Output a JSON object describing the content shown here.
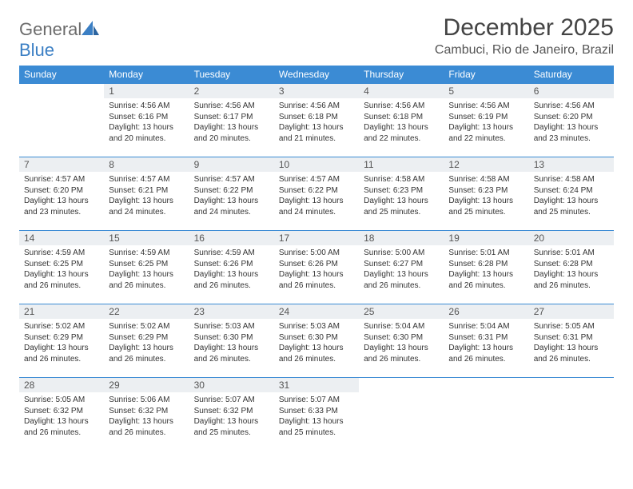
{
  "brand": {
    "part1": "General",
    "part2": "Blue"
  },
  "title": "December 2025",
  "location": "Cambuci, Rio de Janeiro, Brazil",
  "colors": {
    "header_bg": "#3b8bd4",
    "header_text": "#ffffff",
    "daynum_bg": "#eceff2",
    "border": "#3b8bd4",
    "logo_gray": "#6b6b6b",
    "logo_blue": "#3b7fc4"
  },
  "weekdays": [
    "Sunday",
    "Monday",
    "Tuesday",
    "Wednesday",
    "Thursday",
    "Friday",
    "Saturday"
  ],
  "startOffset": 1,
  "days": [
    {
      "n": 1,
      "sunrise": "4:56 AM",
      "sunset": "6:16 PM",
      "daylight": "13 hours and 20 minutes."
    },
    {
      "n": 2,
      "sunrise": "4:56 AM",
      "sunset": "6:17 PM",
      "daylight": "13 hours and 20 minutes."
    },
    {
      "n": 3,
      "sunrise": "4:56 AM",
      "sunset": "6:18 PM",
      "daylight": "13 hours and 21 minutes."
    },
    {
      "n": 4,
      "sunrise": "4:56 AM",
      "sunset": "6:18 PM",
      "daylight": "13 hours and 22 minutes."
    },
    {
      "n": 5,
      "sunrise": "4:56 AM",
      "sunset": "6:19 PM",
      "daylight": "13 hours and 22 minutes."
    },
    {
      "n": 6,
      "sunrise": "4:56 AM",
      "sunset": "6:20 PM",
      "daylight": "13 hours and 23 minutes."
    },
    {
      "n": 7,
      "sunrise": "4:57 AM",
      "sunset": "6:20 PM",
      "daylight": "13 hours and 23 minutes."
    },
    {
      "n": 8,
      "sunrise": "4:57 AM",
      "sunset": "6:21 PM",
      "daylight": "13 hours and 24 minutes."
    },
    {
      "n": 9,
      "sunrise": "4:57 AM",
      "sunset": "6:22 PM",
      "daylight": "13 hours and 24 minutes."
    },
    {
      "n": 10,
      "sunrise": "4:57 AM",
      "sunset": "6:22 PM",
      "daylight": "13 hours and 24 minutes."
    },
    {
      "n": 11,
      "sunrise": "4:58 AM",
      "sunset": "6:23 PM",
      "daylight": "13 hours and 25 minutes."
    },
    {
      "n": 12,
      "sunrise": "4:58 AM",
      "sunset": "6:23 PM",
      "daylight": "13 hours and 25 minutes."
    },
    {
      "n": 13,
      "sunrise": "4:58 AM",
      "sunset": "6:24 PM",
      "daylight": "13 hours and 25 minutes."
    },
    {
      "n": 14,
      "sunrise": "4:59 AM",
      "sunset": "6:25 PM",
      "daylight": "13 hours and 26 minutes."
    },
    {
      "n": 15,
      "sunrise": "4:59 AM",
      "sunset": "6:25 PM",
      "daylight": "13 hours and 26 minutes."
    },
    {
      "n": 16,
      "sunrise": "4:59 AM",
      "sunset": "6:26 PM",
      "daylight": "13 hours and 26 minutes."
    },
    {
      "n": 17,
      "sunrise": "5:00 AM",
      "sunset": "6:26 PM",
      "daylight": "13 hours and 26 minutes."
    },
    {
      "n": 18,
      "sunrise": "5:00 AM",
      "sunset": "6:27 PM",
      "daylight": "13 hours and 26 minutes."
    },
    {
      "n": 19,
      "sunrise": "5:01 AM",
      "sunset": "6:28 PM",
      "daylight": "13 hours and 26 minutes."
    },
    {
      "n": 20,
      "sunrise": "5:01 AM",
      "sunset": "6:28 PM",
      "daylight": "13 hours and 26 minutes."
    },
    {
      "n": 21,
      "sunrise": "5:02 AM",
      "sunset": "6:29 PM",
      "daylight": "13 hours and 26 minutes."
    },
    {
      "n": 22,
      "sunrise": "5:02 AM",
      "sunset": "6:29 PM",
      "daylight": "13 hours and 26 minutes."
    },
    {
      "n": 23,
      "sunrise": "5:03 AM",
      "sunset": "6:30 PM",
      "daylight": "13 hours and 26 minutes."
    },
    {
      "n": 24,
      "sunrise": "5:03 AM",
      "sunset": "6:30 PM",
      "daylight": "13 hours and 26 minutes."
    },
    {
      "n": 25,
      "sunrise": "5:04 AM",
      "sunset": "6:30 PM",
      "daylight": "13 hours and 26 minutes."
    },
    {
      "n": 26,
      "sunrise": "5:04 AM",
      "sunset": "6:31 PM",
      "daylight": "13 hours and 26 minutes."
    },
    {
      "n": 27,
      "sunrise": "5:05 AM",
      "sunset": "6:31 PM",
      "daylight": "13 hours and 26 minutes."
    },
    {
      "n": 28,
      "sunrise": "5:05 AM",
      "sunset": "6:32 PM",
      "daylight": "13 hours and 26 minutes."
    },
    {
      "n": 29,
      "sunrise": "5:06 AM",
      "sunset": "6:32 PM",
      "daylight": "13 hours and 26 minutes."
    },
    {
      "n": 30,
      "sunrise": "5:07 AM",
      "sunset": "6:32 PM",
      "daylight": "13 hours and 25 minutes."
    },
    {
      "n": 31,
      "sunrise": "5:07 AM",
      "sunset": "6:33 PM",
      "daylight": "13 hours and 25 minutes."
    }
  ],
  "labels": {
    "sunrise": "Sunrise:",
    "sunset": "Sunset:",
    "daylight": "Daylight:"
  }
}
